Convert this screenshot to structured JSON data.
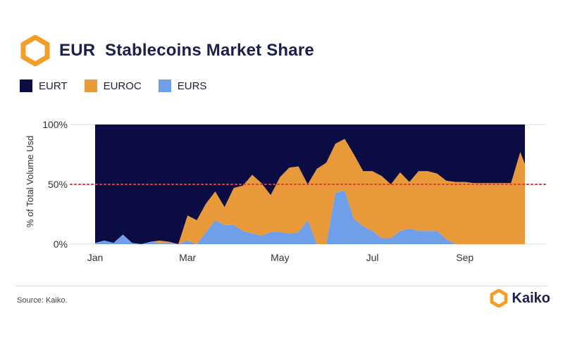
{
  "header": {
    "title": "EUR  Stablecoins Market Share"
  },
  "colors": {
    "eurt": "#0c0c45",
    "euroc": "#e8993a",
    "eurs": "#6f9fe8",
    "reference_line": "#e23a3a",
    "logo": "#f29f27"
  },
  "icons": {
    "title_logo": "kaiko-logo-icon",
    "footer_logo": "kaiko-logo-icon"
  },
  "footer": {
    "source": "Source: Kaiko.",
    "brand": "Kaiko"
  },
  "chart_data": {
    "type": "area",
    "stacked": true,
    "title": "EUR  Stablecoins Market Share",
    "ylabel": "% of Total Volume Usd",
    "xlabel": "",
    "ylim": [
      0,
      100
    ],
    "yticks": [
      "0%",
      "50%",
      "100%"
    ],
    "xticks": [
      "Jan",
      "Mar",
      "May",
      "Jul",
      "Sep"
    ],
    "grid": true,
    "legend_position": "top-left",
    "reference_line": {
      "y": 50,
      "style": "dotted"
    },
    "x": [
      0.0,
      0.1,
      0.2,
      0.3,
      0.4,
      0.5,
      0.6,
      0.7,
      0.8,
      0.9,
      1.0,
      1.1,
      1.2,
      1.3,
      1.4,
      1.5,
      1.6,
      1.7,
      1.8,
      1.9,
      2.0,
      2.1,
      2.2,
      2.3,
      2.4,
      2.5,
      2.6,
      2.7,
      2.8,
      2.9,
      3.0,
      3.1,
      3.2,
      3.3,
      3.4,
      3.5,
      3.6,
      3.7,
      3.8,
      3.9,
      4.0,
      4.1,
      4.2,
      4.3,
      4.4,
      4.5,
      4.6,
      4.65
    ],
    "series": [
      {
        "name": "EURS",
        "values": [
          1,
          3,
          1,
          8,
          1,
          0,
          2,
          1,
          1,
          0,
          3,
          0,
          10,
          20,
          16,
          16,
          11,
          9,
          7,
          10,
          10,
          9,
          10,
          20,
          0,
          0,
          43,
          45,
          21,
          15,
          11,
          5,
          5,
          11,
          13,
          11,
          11,
          11,
          4,
          0,
          0,
          0,
          0,
          0,
          0,
          0,
          0,
          0
        ]
      },
      {
        "name": "EUROC",
        "values": [
          0,
          0,
          0,
          0,
          0,
          0,
          0,
          2,
          1,
          0,
          21,
          20,
          24,
          24,
          15,
          31,
          38,
          49,
          44,
          31,
          46,
          55,
          55,
          30,
          63,
          68,
          41,
          43,
          54,
          46,
          50,
          52,
          45,
          49,
          39,
          50,
          50,
          48,
          49,
          52,
          52,
          51,
          51,
          51,
          51,
          51,
          77,
          67
        ]
      },
      {
        "name": "EURT",
        "values": [
          99,
          97,
          99,
          92,
          99,
          100,
          98,
          97,
          98,
          100,
          76,
          80,
          66,
          56,
          69,
          53,
          51,
          42,
          49,
          59,
          44,
          36,
          35,
          50,
          37,
          32,
          16,
          12,
          25,
          39,
          39,
          43,
          50,
          40,
          48,
          39,
          39,
          41,
          47,
          48,
          48,
          49,
          49,
          49,
          49,
          49,
          23,
          33
        ]
      }
    ]
  }
}
